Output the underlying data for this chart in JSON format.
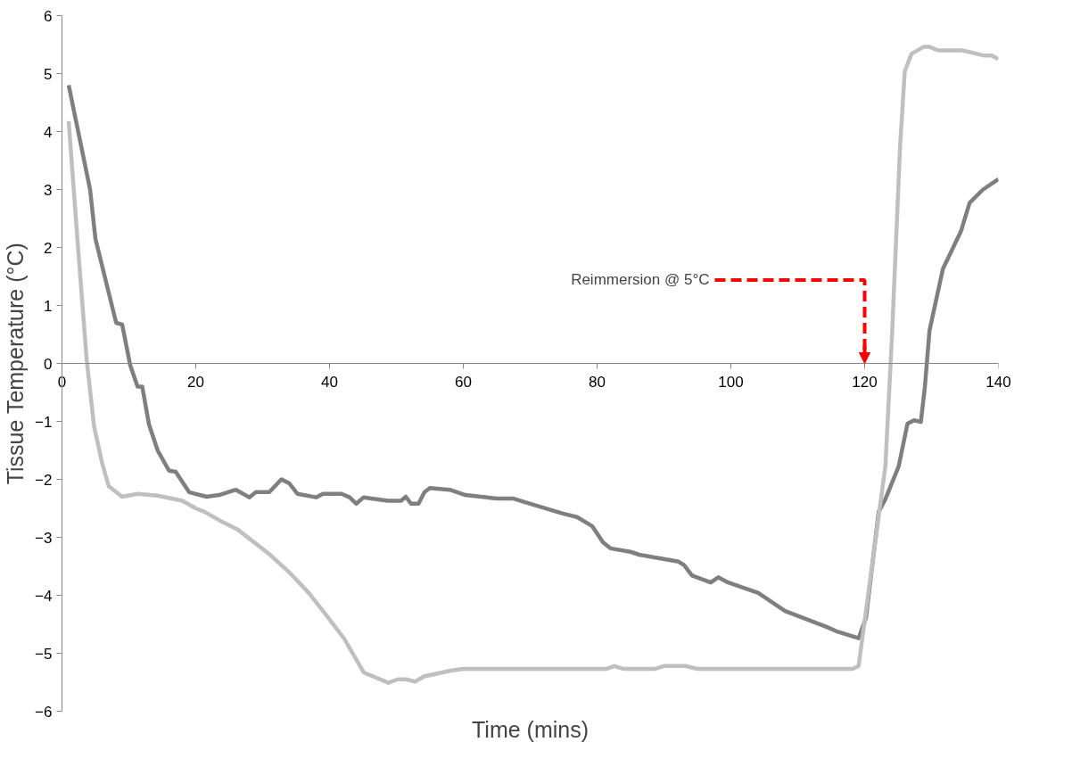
{
  "chart_data": {
    "type": "line",
    "xlabel": "Time (mins)",
    "ylabel": "Tissue Temperature (°C)",
    "xlim": [
      0,
      140
    ],
    "xticks": [
      0,
      20,
      40,
      60,
      80,
      100,
      120,
      140
    ],
    "ylim": [
      -6,
      6
    ],
    "yticks": [
      -6,
      -5,
      -4,
      -3,
      -2,
      -1,
      0,
      1,
      2,
      3,
      4,
      5,
      6
    ],
    "grid": false,
    "marker": "none",
    "line_style": "solid",
    "ref_lines": [
      {
        "axis": "x",
        "value": 120,
        "label": "Reimmersion @ 5°C",
        "color": "#ff0000",
        "line_style": "dashed"
      }
    ],
    "series": [
      {
        "color": "#7f7f7f",
        "x": [
          1,
          4.2,
          5,
          8.1,
          9,
          10.2,
          11.3,
          12,
          13,
          14.3,
          16,
          17,
          19,
          21.6,
          23.5,
          26,
          28,
          29,
          31,
          32.8,
          34,
          35.2,
          38,
          39,
          41.8,
          43,
          44,
          45.1,
          48.7,
          50.7,
          51.4,
          52.2,
          53.3,
          54.2,
          55,
          58,
          60.3,
          65,
          67.4,
          70,
          74.9,
          77,
          79.3,
          80.9,
          82,
          85,
          86.3,
          92.2,
          93,
          94.2,
          97,
          98.1,
          99.6,
          104.1,
          108.1,
          111.5,
          114.2,
          116,
          119.1,
          120.2,
          122.1,
          123.1,
          125.1,
          126.4,
          127.4,
          128.4,
          129,
          129.7,
          131.7,
          134.4,
          135.7,
          137.7,
          140
        ],
        "values": [
          4.8,
          3.0,
          2.15,
          0.7,
          0.67,
          -0.03,
          -0.4,
          -0.4,
          -1.05,
          -1.5,
          -1.85,
          -1.87,
          -2.22,
          -2.3,
          -2.27,
          -2.18,
          -2.31,
          -2.22,
          -2.22,
          -2.0,
          -2.07,
          -2.25,
          -2.31,
          -2.25,
          -2.25,
          -2.31,
          -2.42,
          -2.31,
          -2.37,
          -2.37,
          -2.3,
          -2.42,
          -2.42,
          -2.22,
          -2.15,
          -2.18,
          -2.27,
          -2.33,
          -2.33,
          -2.42,
          -2.59,
          -2.65,
          -2.81,
          -3.09,
          -3.19,
          -3.25,
          -3.3,
          -3.42,
          -3.48,
          -3.66,
          -3.78,
          -3.69,
          -3.78,
          -3.96,
          -4.27,
          -4.42,
          -4.54,
          -4.63,
          -4.74,
          -4.39,
          -2.56,
          -2.34,
          -1.77,
          -1.04,
          -0.98,
          -1.01,
          -0.41,
          0.57,
          1.63,
          2.28,
          2.77,
          3.0,
          3.18
        ]
      },
      {
        "color": "#bfbfbf",
        "x": [
          1,
          2.4,
          3.7,
          4.8,
          6,
          7,
          9,
          11.3,
          14.3,
          18,
          20,
          21.3,
          23.6,
          26.2,
          30.9,
          34.2,
          36.9,
          39.5,
          42.2,
          45.1,
          48.8,
          50.2,
          51.5,
          52.8,
          54.1,
          58.1,
          60,
          81.3,
          82.6,
          84,
          88.6,
          90,
          93.2,
          95,
          118.2,
          119.1,
          123.1,
          124.1,
          125.3,
          126,
          127,
          128.8,
          129.7,
          131,
          134.6,
          137.9,
          139,
          140
        ],
        "values": [
          4.18,
          2.0,
          0.05,
          -1.09,
          -1.72,
          -2.12,
          -2.3,
          -2.25,
          -2.28,
          -2.37,
          -2.5,
          -2.56,
          -2.71,
          -2.86,
          -3.28,
          -3.63,
          -3.96,
          -4.34,
          -4.75,
          -5.33,
          -5.51,
          -5.45,
          -5.45,
          -5.49,
          -5.4,
          -5.3,
          -5.27,
          -5.27,
          -5.22,
          -5.27,
          -5.27,
          -5.22,
          -5.22,
          -5.27,
          -5.27,
          -5.22,
          -1.77,
          0.5,
          3.75,
          5.04,
          5.34,
          5.46,
          5.46,
          5.4,
          5.4,
          5.31,
          5.31,
          5.25
        ]
      }
    ]
  }
}
